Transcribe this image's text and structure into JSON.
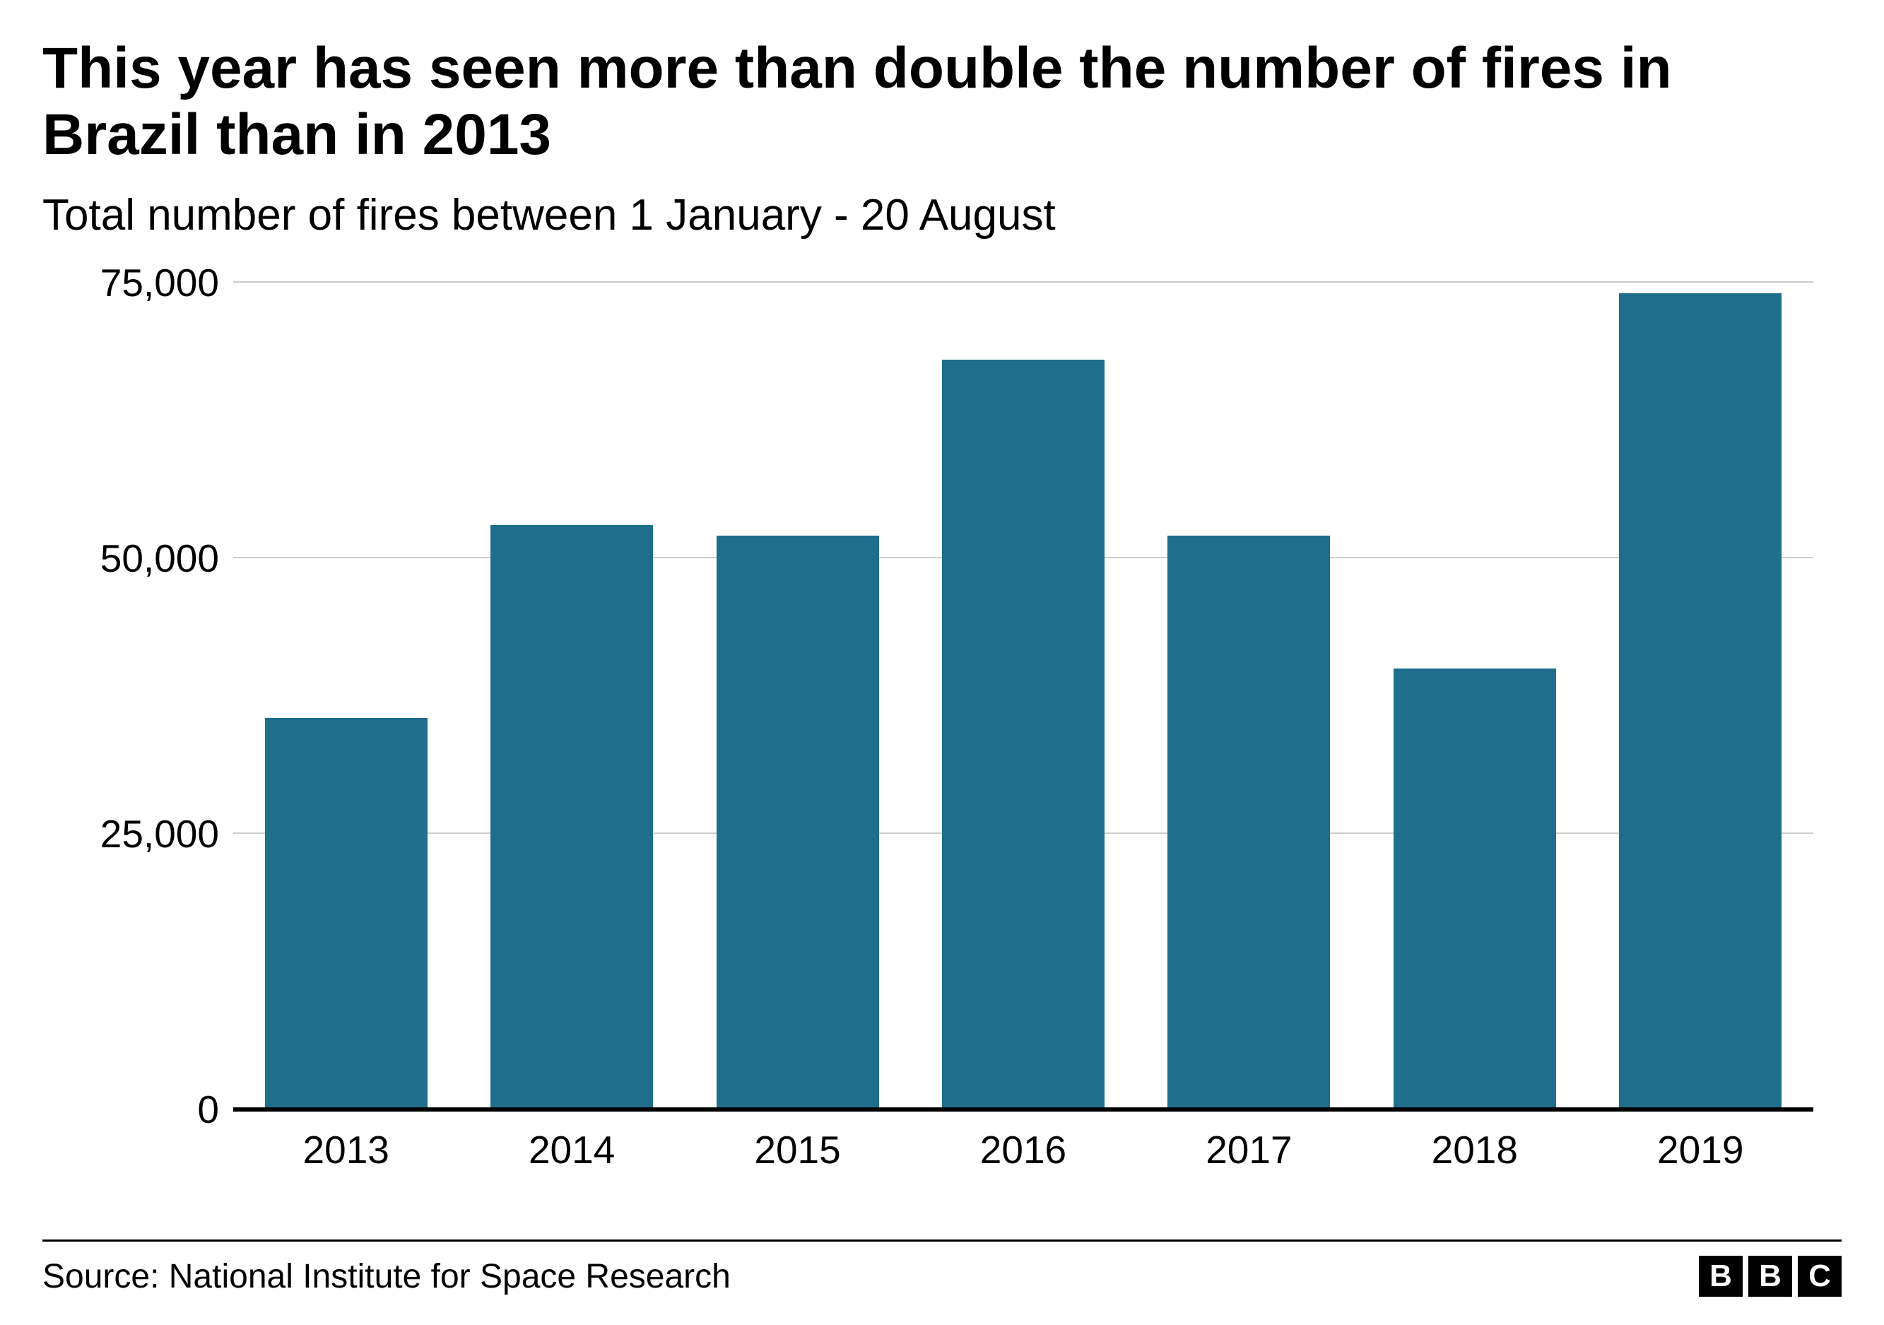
{
  "chart": {
    "type": "bar",
    "title": "This year has seen more than double the number of fires in Brazil than in 2013",
    "title_fontsize": 82,
    "subtitle": "Total number of fires between 1 January - 20 August",
    "subtitle_fontsize": 62,
    "categories": [
      "2013",
      "2014",
      "2015",
      "2016",
      "2017",
      "2018",
      "2019"
    ],
    "values": [
      35500,
      53000,
      52000,
      68000,
      52000,
      40000,
      74000
    ],
    "bar_color": "#1e6e8c",
    "background_color": "#ffffff",
    "grid_color": "#cccccc",
    "baseline_color": "#000000",
    "ylim": [
      0,
      75000
    ],
    "yticks": [
      0,
      25000,
      50000,
      75000
    ],
    "ytick_labels": [
      "0",
      "25,000",
      "50,000",
      "75,000"
    ],
    "axis_fontsize": 55,
    "bar_width_ratio": 0.72,
    "source_label": "Source: National Institute for Space Research",
    "source_fontsize": 48,
    "logo_letters": [
      "B",
      "B",
      "C"
    ]
  }
}
